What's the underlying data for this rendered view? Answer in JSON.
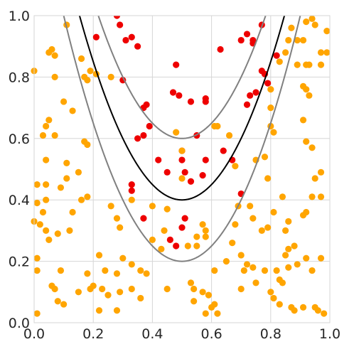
{
  "chart_data": {
    "type": "scatter",
    "title": "",
    "xlabel": "",
    "ylabel": "",
    "xlim": [
      0,
      1
    ],
    "ylim": [
      0,
      1
    ],
    "grid": true,
    "legend": "none",
    "x_ticks": [
      "0.0",
      "0.2",
      "0.4",
      "0.6",
      "0.8",
      "1.0"
    ],
    "y_ticks": [
      "0.0",
      "0.2",
      "0.4",
      "0.6",
      "0.8",
      "1.0"
    ],
    "colors": {
      "inside": "#ee0000",
      "outside": "#ffa500",
      "center_curve": "#000000",
      "band_curves": "#808080"
    },
    "curves": [
      {
        "kind": "center",
        "formula": "y = 0.4 + 5*(x-0.5)^2",
        "color": "#000000"
      },
      {
        "kind": "upper-band",
        "formula": "y = 0.6 + 5*(x-0.5)^2",
        "color": "#808080"
      },
      {
        "kind": "lower-band",
        "formula": "y = 0.2 + 5*(x-0.5)^2",
        "color": "#808080"
      }
    ],
    "series": [
      {
        "color": "#ee0000",
        "points": [
          [
            0.28,
            1.0
          ],
          [
            0.29,
            0.97
          ],
          [
            0.31,
            0.92
          ],
          [
            0.33,
            0.93
          ],
          [
            0.21,
            0.93
          ],
          [
            0.3,
            0.79
          ],
          [
            0.35,
            0.9
          ],
          [
            0.48,
            0.84
          ],
          [
            0.38,
            0.71
          ],
          [
            0.37,
            0.7
          ],
          [
            0.39,
            0.64
          ],
          [
            0.37,
            0.61
          ],
          [
            0.35,
            0.6
          ],
          [
            0.33,
            0.45
          ],
          [
            0.33,
            0.43
          ],
          [
            0.42,
            0.53
          ],
          [
            0.47,
            0.75
          ],
          [
            0.49,
            0.74
          ],
          [
            0.53,
            0.72
          ],
          [
            0.58,
            0.73
          ],
          [
            0.58,
            0.72
          ],
          [
            0.55,
            0.61
          ],
          [
            0.5,
            0.56
          ],
          [
            0.5,
            0.53
          ],
          [
            0.51,
            0.49
          ],
          [
            0.58,
            0.53
          ],
          [
            0.57,
            0.48
          ],
          [
            0.53,
            0.46
          ],
          [
            0.45,
            0.49
          ],
          [
            0.5,
            0.31
          ],
          [
            0.51,
            0.34
          ],
          [
            0.46,
            0.27
          ],
          [
            0.48,
            0.25
          ],
          [
            0.37,
            0.34
          ],
          [
            0.63,
            0.89
          ],
          [
            0.7,
            0.92
          ],
          [
            0.74,
            0.91
          ],
          [
            0.74,
            0.92
          ],
          [
            0.77,
            0.97
          ],
          [
            0.72,
            0.94
          ],
          [
            0.82,
            0.87
          ],
          [
            0.77,
            0.82
          ],
          [
            0.78,
            0.81
          ],
          [
            0.75,
            0.75
          ],
          [
            0.73,
            0.74
          ],
          [
            0.72,
            0.71
          ],
          [
            0.79,
            0.78
          ],
          [
            0.64,
            0.56
          ],
          [
            0.67,
            0.53
          ],
          [
            0.7,
            0.42
          ]
        ]
      },
      {
        "color": "#ffa500",
        "points": [
          [
            0.0,
            0.82
          ],
          [
            0.05,
            0.88
          ],
          [
            0.06,
            0.89
          ],
          [
            0.07,
            0.87
          ],
          [
            0.11,
            0.97
          ],
          [
            0.16,
            0.86
          ],
          [
            0.17,
            0.8
          ],
          [
            0.18,
            0.79
          ],
          [
            0.19,
            0.82
          ],
          [
            0.21,
            0.81
          ],
          [
            0.26,
            0.8
          ],
          [
            0.07,
            0.8
          ],
          [
            0.1,
            0.72
          ],
          [
            0.13,
            0.69
          ],
          [
            0.05,
            0.66
          ],
          [
            0.04,
            0.64
          ],
          [
            0.03,
            0.61
          ],
          [
            0.07,
            0.61
          ],
          [
            0.17,
            0.59
          ],
          [
            0.18,
            0.58
          ],
          [
            0.04,
            0.53
          ],
          [
            0.11,
            0.52
          ],
          [
            0.11,
            0.47
          ],
          [
            0.15,
            0.49
          ],
          [
            0.04,
            0.45
          ],
          [
            0.09,
            0.44
          ],
          [
            0.18,
            0.41
          ],
          [
            0.16,
            0.4
          ],
          [
            0.13,
            0.36
          ],
          [
            0.04,
            0.4
          ],
          [
            0.01,
            0.45
          ],
          [
            0.01,
            0.39
          ],
          [
            0.03,
            0.36
          ],
          [
            0.0,
            0.33
          ],
          [
            0.02,
            0.32
          ],
          [
            0.04,
            0.3
          ],
          [
            0.08,
            0.29
          ],
          [
            0.05,
            0.27
          ],
          [
            0.12,
            0.3
          ],
          [
            0.01,
            0.21
          ],
          [
            0.01,
            0.17
          ],
          [
            0.09,
            0.17
          ],
          [
            0.18,
            0.16
          ],
          [
            0.22,
            0.22
          ],
          [
            0.24,
            0.17
          ],
          [
            0.2,
            0.12
          ],
          [
            0.23,
            0.11
          ],
          [
            0.28,
            0.16
          ],
          [
            0.3,
            0.21
          ],
          [
            0.33,
            0.19
          ],
          [
            0.36,
            0.17
          ],
          [
            0.38,
            0.16
          ],
          [
            0.4,
            0.27
          ],
          [
            0.43,
            0.24
          ],
          [
            0.44,
            0.3
          ],
          [
            0.45,
            0.37
          ],
          [
            0.4,
            0.38
          ],
          [
            0.28,
            0.34
          ],
          [
            0.29,
            0.31
          ],
          [
            0.26,
            0.38
          ],
          [
            0.33,
            0.4
          ],
          [
            0.06,
            0.12
          ],
          [
            0.07,
            0.11
          ],
          [
            0.08,
            0.07
          ],
          [
            0.1,
            0.06
          ],
          [
            0.15,
            0.1
          ],
          [
            0.19,
            0.11
          ],
          [
            0.25,
            0.09
          ],
          [
            0.29,
            0.1
          ],
          [
            0.33,
            0.11
          ],
          [
            0.36,
            0.08
          ],
          [
            0.22,
            0.04
          ],
          [
            0.01,
            0.03
          ],
          [
            0.5,
            0.56
          ],
          [
            0.48,
            0.62
          ],
          [
            0.5,
            0.47
          ],
          [
            0.52,
            0.25
          ],
          [
            0.55,
            0.25
          ],
          [
            0.58,
            0.28
          ],
          [
            0.58,
            0.3
          ],
          [
            0.57,
            0.32
          ],
          [
            0.55,
            0.28
          ],
          [
            0.53,
            0.13
          ],
          [
            0.54,
            0.11
          ],
          [
            0.57,
            0.1
          ],
          [
            0.59,
            0.09
          ],
          [
            0.61,
            0.06
          ],
          [
            0.62,
            0.03
          ],
          [
            0.6,
            0.05
          ],
          [
            0.61,
            0.17
          ],
          [
            0.65,
            0.2
          ],
          [
            0.67,
            0.26
          ],
          [
            0.68,
            0.32
          ],
          [
            0.69,
            0.38
          ],
          [
            0.73,
            0.38
          ],
          [
            0.74,
            0.34
          ],
          [
            0.77,
            0.3
          ],
          [
            0.79,
            0.31
          ],
          [
            0.81,
            0.36
          ],
          [
            0.84,
            0.41
          ],
          [
            0.79,
            0.47
          ],
          [
            0.8,
            0.64
          ],
          [
            0.81,
            0.62
          ],
          [
            0.8,
            0.7
          ],
          [
            0.8,
            0.76
          ],
          [
            0.83,
            0.85
          ],
          [
            0.85,
            0.88
          ],
          [
            0.86,
            0.92
          ],
          [
            0.87,
            0.96
          ],
          [
            0.89,
            0.92
          ],
          [
            0.91,
            0.92
          ],
          [
            0.94,
            0.99
          ],
          [
            0.92,
            0.98
          ],
          [
            0.95,
            0.97
          ],
          [
            0.97,
            0.88
          ],
          [
            0.89,
            0.84
          ],
          [
            0.92,
            0.84
          ],
          [
            0.93,
            0.84
          ],
          [
            0.91,
            0.77
          ],
          [
            0.92,
            0.76
          ],
          [
            0.93,
            0.74
          ],
          [
            0.91,
            0.66
          ],
          [
            0.92,
            0.59
          ],
          [
            0.94,
            0.57
          ],
          [
            0.97,
            0.49
          ],
          [
            0.95,
            0.47
          ],
          [
            0.94,
            0.41
          ],
          [
            0.92,
            0.36
          ],
          [
            0.91,
            0.35
          ],
          [
            0.86,
            0.33
          ],
          [
            0.85,
            0.3
          ],
          [
            0.86,
            0.24
          ],
          [
            0.88,
            0.25
          ],
          [
            0.85,
            0.22
          ],
          [
            0.82,
            0.17
          ],
          [
            0.83,
            0.14
          ],
          [
            0.84,
            0.13
          ],
          [
            0.81,
            0.08
          ],
          [
            0.83,
            0.06
          ],
          [
            0.87,
            0.05
          ],
          [
            0.88,
            0.04
          ],
          [
            0.91,
            0.05
          ],
          [
            0.95,
            0.05
          ],
          [
            0.96,
            0.04
          ],
          [
            0.98,
            0.03
          ],
          [
            0.97,
            0.84
          ],
          [
            0.99,
            0.88
          ],
          [
            0.99,
            0.95
          ],
          [
            0.78,
            0.17
          ],
          [
            0.8,
            0.1
          ],
          [
            0.7,
            0.11
          ],
          [
            0.7,
            0.22
          ],
          [
            0.72,
            0.19
          ],
          [
            0.74,
            0.18
          ],
          [
            0.68,
            0.51
          ],
          [
            0.66,
            0.61
          ],
          [
            0.75,
            0.53
          ],
          [
            0.78,
            0.54
          ],
          [
            0.61,
            0.64
          ],
          [
            0.62,
            0.64
          ],
          [
            0.28,
            0.04
          ],
          [
            0.45,
            0.11
          ],
          [
            0.54,
            0.07
          ],
          [
            0.58,
            0.03
          ],
          [
            0.71,
            0.17
          ],
          [
            0.75,
            0.13
          ],
          [
            0.86,
            0.18
          ],
          [
            0.89,
            0.19
          ],
          [
            0.92,
            0.21
          ],
          [
            0.94,
            0.17
          ],
          [
            0.97,
            0.21
          ],
          [
            0.97,
            0.41
          ]
        ]
      }
    ]
  }
}
